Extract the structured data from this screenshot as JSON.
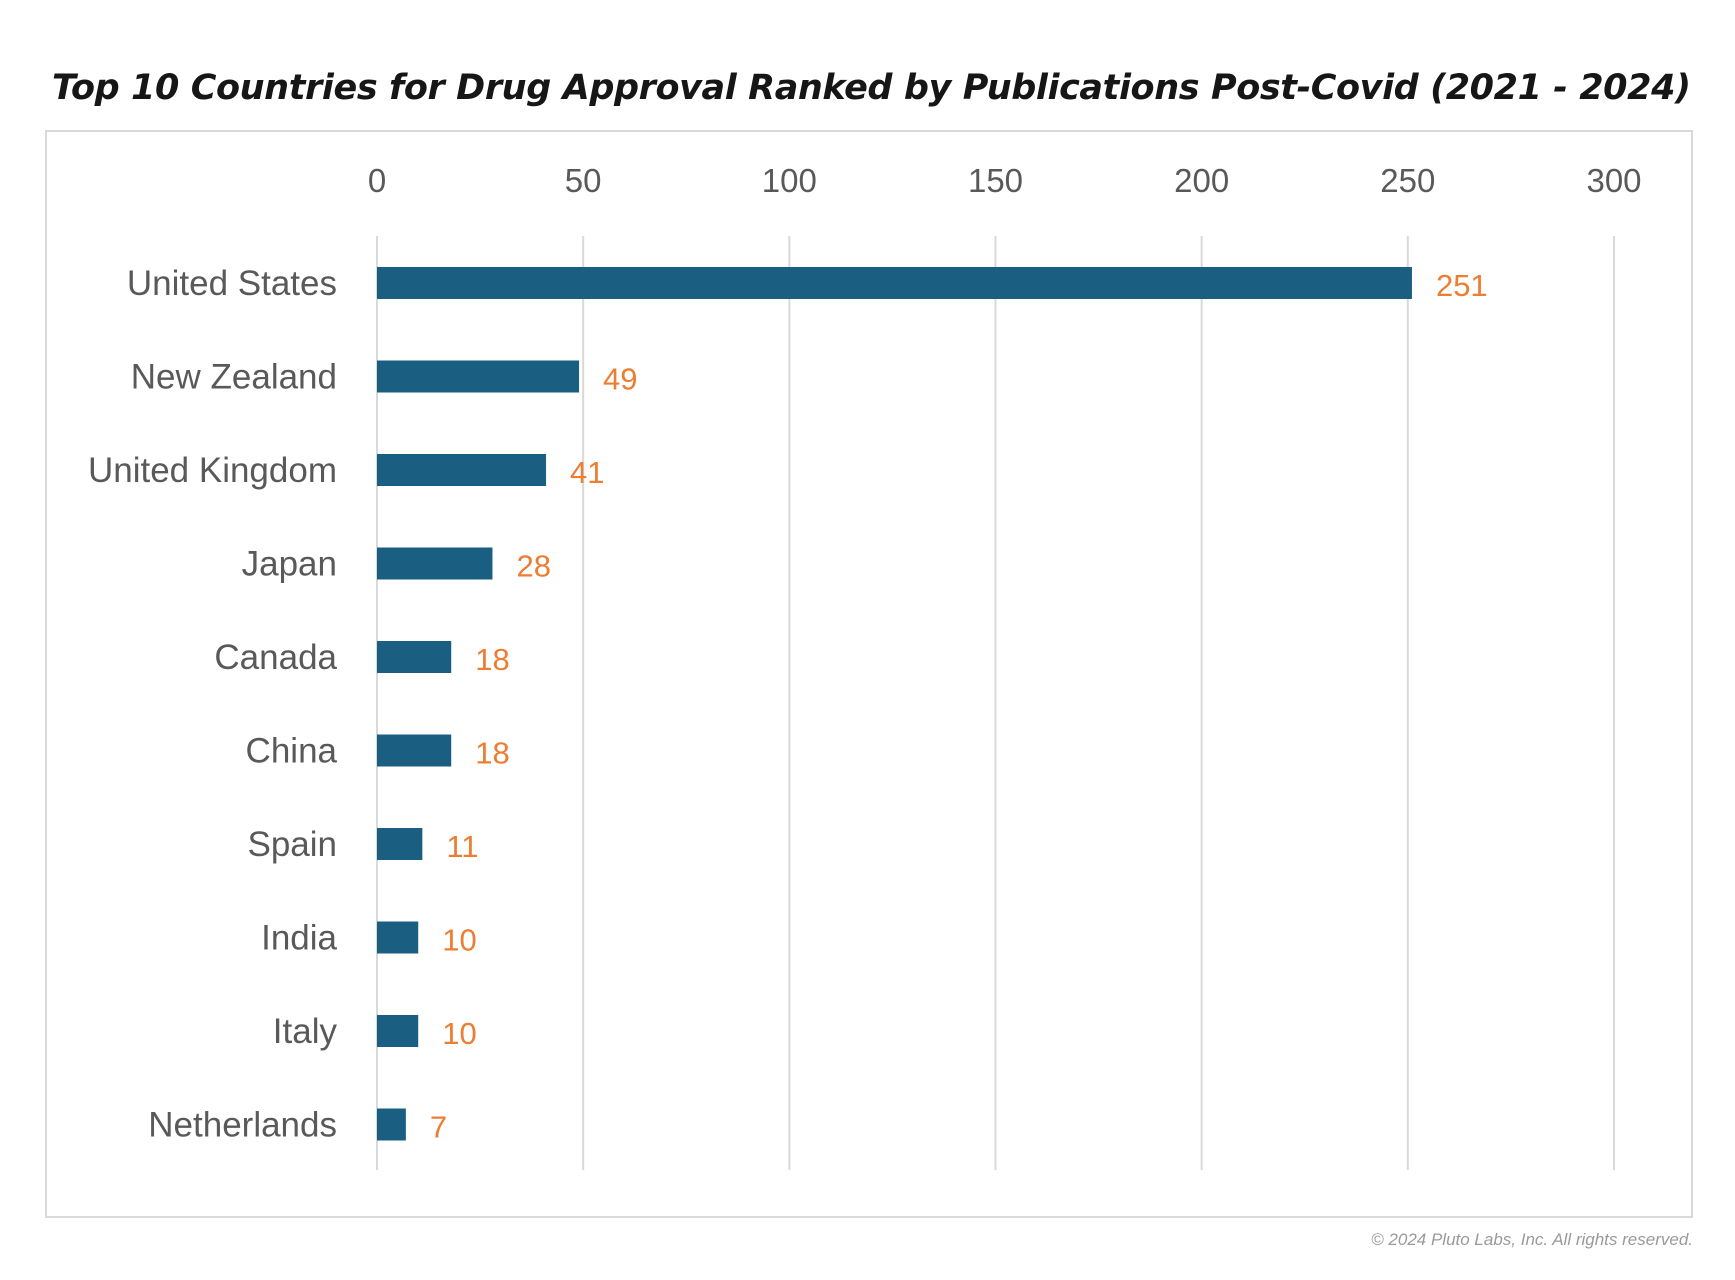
{
  "chart_data": {
    "type": "bar",
    "orientation": "horizontal",
    "title": "Top 10 Countries for Drug Approval Ranked by Publications Post-Covid (2021 - 2024)",
    "xlabel": "",
    "ylabel": "",
    "xlim": [
      0,
      300
    ],
    "ticks": [
      0,
      50,
      100,
      150,
      200,
      250,
      300
    ],
    "tick_labels": [
      "0",
      "50",
      "100",
      "150",
      "200",
      "250",
      "300"
    ],
    "axis_position": "top",
    "grid": true,
    "legend": "none",
    "categories": [
      "United States",
      "New Zealand",
      "United Kingdom",
      "Japan",
      "Canada",
      "China",
      "Spain",
      "India",
      "Italy",
      "Netherlands"
    ],
    "values": [
      251,
      49,
      41,
      28,
      18,
      18,
      11,
      10,
      10,
      7
    ],
    "value_labels": [
      "251",
      "49",
      "41",
      "28",
      "18",
      "18",
      "11",
      "10",
      "10",
      "7"
    ],
    "colors": {
      "bar": "#1a5f82",
      "data_label": "#ed7d31",
      "gridline": "#d9d9d9",
      "axis_text": "#595959"
    }
  },
  "footer": {
    "copyright": "© 2024 Pluto Labs, Inc. All rights reserved."
  }
}
